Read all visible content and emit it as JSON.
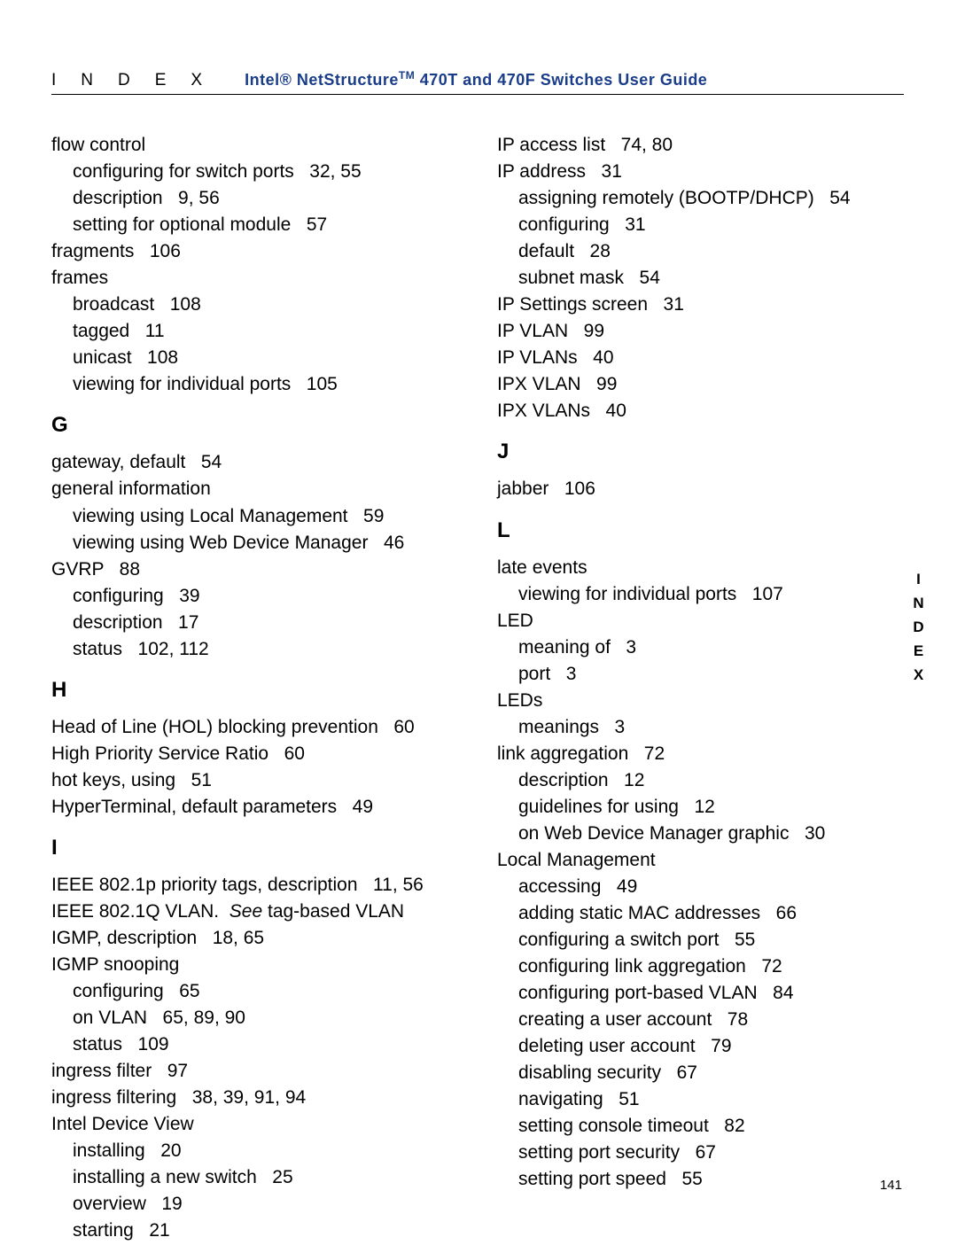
{
  "header": {
    "left": "INDEX",
    "right_prefix": "Intel® NetStructure",
    "right_suffix": " 470T and 470F Switches User Guide"
  },
  "side_tab": "INDEX",
  "page_number": "141",
  "col1": [
    {
      "t": "entry",
      "v": "flow control"
    },
    {
      "t": "sub",
      "v": "configuring for switch ports   32, 55"
    },
    {
      "t": "sub",
      "v": "description   9, 56"
    },
    {
      "t": "sub",
      "v": "setting for optional module   57"
    },
    {
      "t": "entry",
      "v": "fragments   106"
    },
    {
      "t": "entry",
      "v": "frames"
    },
    {
      "t": "sub",
      "v": "broadcast   108"
    },
    {
      "t": "sub",
      "v": "tagged   11"
    },
    {
      "t": "sub",
      "v": "unicast   108"
    },
    {
      "t": "sub",
      "v": "viewing for individual ports   105"
    },
    {
      "t": "letter",
      "v": "G"
    },
    {
      "t": "entry",
      "v": "gateway, default   54"
    },
    {
      "t": "entry",
      "v": "general information"
    },
    {
      "t": "sub",
      "v": "viewing using Local Management   59"
    },
    {
      "t": "sub",
      "v": "viewing using Web Device Manager   46"
    },
    {
      "t": "entry",
      "v": "GVRP   88"
    },
    {
      "t": "sub",
      "v": "configuring   39"
    },
    {
      "t": "sub",
      "v": "description   17"
    },
    {
      "t": "sub",
      "v": "status   102, 112"
    },
    {
      "t": "letter",
      "v": "H"
    },
    {
      "t": "entry",
      "v": "Head of Line (HOL) blocking prevention   60"
    },
    {
      "t": "entry",
      "v": "High Priority Service Ratio   60"
    },
    {
      "t": "entry",
      "v": "hot keys, using   51"
    },
    {
      "t": "entry",
      "v": "HyperTerminal, default parameters   49"
    },
    {
      "t": "letter",
      "v": "I"
    },
    {
      "t": "entry",
      "v": "IEEE 802.1p priority tags, description   11, 56"
    },
    {
      "t": "see",
      "prefix": "IEEE 802.1Q VLAN.  ",
      "italic": "See",
      "suffix": " tag-based VLAN"
    },
    {
      "t": "entry",
      "v": "IGMP, description   18, 65"
    },
    {
      "t": "entry",
      "v": "IGMP snooping"
    },
    {
      "t": "sub",
      "v": "configuring   65"
    },
    {
      "t": "sub",
      "v": "on VLAN   65, 89, 90"
    },
    {
      "t": "sub",
      "v": "status   109"
    },
    {
      "t": "entry",
      "v": "ingress filter   97"
    },
    {
      "t": "entry",
      "v": "ingress filtering   38, 39, 91, 94"
    },
    {
      "t": "entry",
      "v": "Intel Device View"
    },
    {
      "t": "sub",
      "v": "installing   20"
    },
    {
      "t": "sub",
      "v": "installing a new switch   25"
    },
    {
      "t": "sub",
      "v": "overview   19"
    },
    {
      "t": "sub",
      "v": "starting   21"
    }
  ],
  "col2": [
    {
      "t": "entry",
      "v": "IP access list   74, 80"
    },
    {
      "t": "entry",
      "v": "IP address   31"
    },
    {
      "t": "sub",
      "v": "assigning remotely (BOOTP/DHCP)   54"
    },
    {
      "t": "sub",
      "v": "configuring   31"
    },
    {
      "t": "sub",
      "v": "default   28"
    },
    {
      "t": "sub",
      "v": "subnet mask   54"
    },
    {
      "t": "entry",
      "v": "IP Settings screen   31"
    },
    {
      "t": "entry",
      "v": "IP VLAN   99"
    },
    {
      "t": "entry",
      "v": "IP VLANs   40"
    },
    {
      "t": "entry",
      "v": "IPX VLAN   99"
    },
    {
      "t": "entry",
      "v": "IPX VLANs   40"
    },
    {
      "t": "letter",
      "v": "J"
    },
    {
      "t": "entry",
      "v": "jabber   106"
    },
    {
      "t": "letter",
      "v": "L"
    },
    {
      "t": "entry",
      "v": "late events"
    },
    {
      "t": "sub",
      "v": "viewing for individual ports   107"
    },
    {
      "t": "entry",
      "v": "LED"
    },
    {
      "t": "sub",
      "v": "meaning of   3"
    },
    {
      "t": "sub",
      "v": "port   3"
    },
    {
      "t": "entry",
      "v": "LEDs"
    },
    {
      "t": "sub",
      "v": "meanings   3"
    },
    {
      "t": "entry",
      "v": "link aggregation   72"
    },
    {
      "t": "sub",
      "v": "description   12"
    },
    {
      "t": "sub",
      "v": "guidelines for using   12"
    },
    {
      "t": "sub",
      "v": "on Web Device Manager graphic   30"
    },
    {
      "t": "entry",
      "v": "Local Management"
    },
    {
      "t": "sub",
      "v": "accessing   49"
    },
    {
      "t": "sub",
      "v": "adding static MAC addresses   66"
    },
    {
      "t": "sub",
      "v": "configuring a switch port   55"
    },
    {
      "t": "sub",
      "v": "configuring link aggregation   72"
    },
    {
      "t": "sub",
      "v": "configuring port-based VLAN   84"
    },
    {
      "t": "sub",
      "v": "creating a user account   78"
    },
    {
      "t": "sub",
      "v": "deleting user account   79"
    },
    {
      "t": "sub",
      "v": "disabling security   67"
    },
    {
      "t": "sub",
      "v": "navigating   51"
    },
    {
      "t": "sub",
      "v": "setting console timeout   82"
    },
    {
      "t": "sub",
      "v": "setting port security   67"
    },
    {
      "t": "sub",
      "v": "setting port speed   55"
    }
  ]
}
